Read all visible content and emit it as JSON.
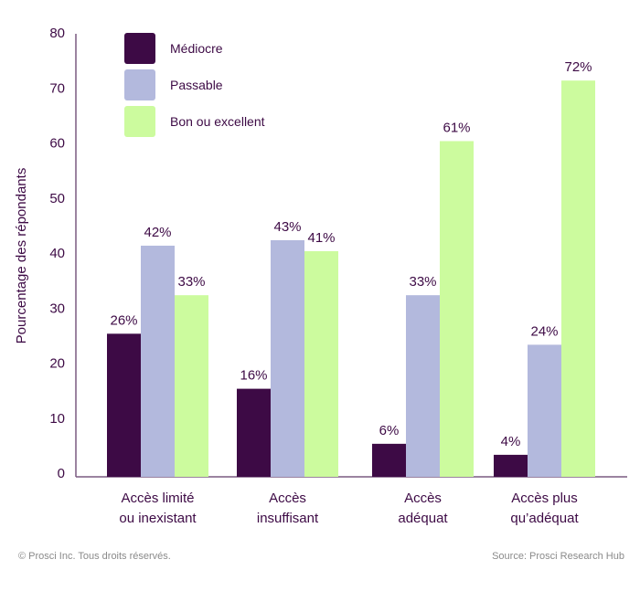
{
  "chart_data": {
    "type": "bar",
    "title": "",
    "xlabel": "",
    "ylabel": "Pourcentage des répondants",
    "ylim": [
      0,
      80
    ],
    "yticks": [
      0,
      10,
      20,
      30,
      40,
      50,
      60,
      70,
      80
    ],
    "grid": false,
    "legend_position": "top-left",
    "categories": [
      [
        "Accès limité",
        "ou inexistant"
      ],
      [
        "Accès",
        "insuffisant"
      ],
      [
        "Accès",
        "adéquat"
      ],
      [
        "Accès  plus",
        "qu’adéquat"
      ]
    ],
    "series": [
      {
        "name": "Médiocre",
        "color": "#3d0a45",
        "values": [
          26,
          16,
          6,
          4
        ],
        "labels": [
          "26%",
          "16%",
          "6%",
          "4%"
        ]
      },
      {
        "name": "Passable",
        "color": "#b3b9dd",
        "values": [
          42,
          43,
          33,
          24
        ],
        "labels": [
          "42%",
          "43%",
          "33%",
          "24%"
        ]
      },
      {
        "name": "Bon ou excellent",
        "color": "#ccfb9e",
        "values": [
          33,
          41,
          61,
          72
        ],
        "labels": [
          "33%",
          "",
          "61%",
          "72%"
        ]
      }
    ],
    "annotation_extra": "41%"
  },
  "footer": {
    "copyright": "© Prosci Inc. Tous droits réservés.",
    "source": "Source: Prosci Research Hub"
  }
}
